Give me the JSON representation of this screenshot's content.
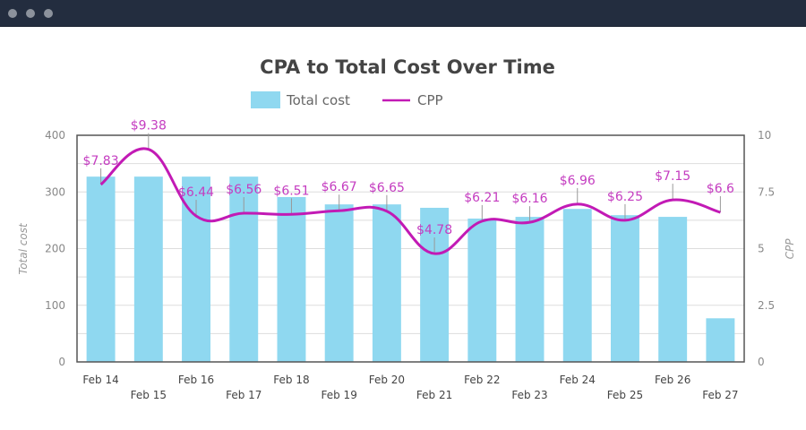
{
  "window": {
    "controls": [
      "close",
      "minimize",
      "maximize"
    ]
  },
  "chart_data": {
    "type": "bar",
    "title": "CPA to Total Cost Over Time",
    "categories": [
      "Feb 14",
      "Feb 15",
      "Feb 16",
      "Feb 17",
      "Feb 18",
      "Feb 19",
      "Feb 20",
      "Feb 21",
      "Feb 22",
      "Feb 23",
      "Feb 24",
      "Feb 25",
      "Feb 26",
      "Feb 27"
    ],
    "series": [
      {
        "name": "Total cost",
        "type": "bar",
        "axis": "left",
        "color": "#8fd8f0",
        "values": [
          327,
          327,
          327,
          327,
          291,
          278,
          278,
          272,
          253,
          256,
          270,
          259,
          256,
          77
        ]
      },
      {
        "name": "CPP",
        "type": "line",
        "axis": "right",
        "color": "#c21ab5",
        "smooth": true,
        "values": [
          7.83,
          9.38,
          6.44,
          6.56,
          6.51,
          6.67,
          6.65,
          4.78,
          6.21,
          6.16,
          6.96,
          6.25,
          7.15,
          6.6
        ],
        "data_labels": [
          "$7.83",
          "$9.38",
          "$6.44",
          "$6.56",
          "$6.51",
          "$6.67",
          "$6.65",
          "$4.78",
          "$6.21",
          "$6.16",
          "$6.96",
          "$6.25",
          "$7.15",
          "$6.6"
        ]
      }
    ],
    "legend": {
      "position": "top",
      "items": [
        "Total cost",
        "CPP"
      ]
    },
    "y_left": {
      "label": "Total cost",
      "range": [
        0,
        400
      ],
      "ticks": [
        "0",
        "100",
        "200",
        "300",
        "400"
      ]
    },
    "y_right": {
      "label": "CPP",
      "range": [
        0,
        10
      ],
      "ticks": [
        "0",
        "2.5",
        "5",
        "7.5",
        "10"
      ]
    },
    "xlabel": "",
    "grid": true
  }
}
